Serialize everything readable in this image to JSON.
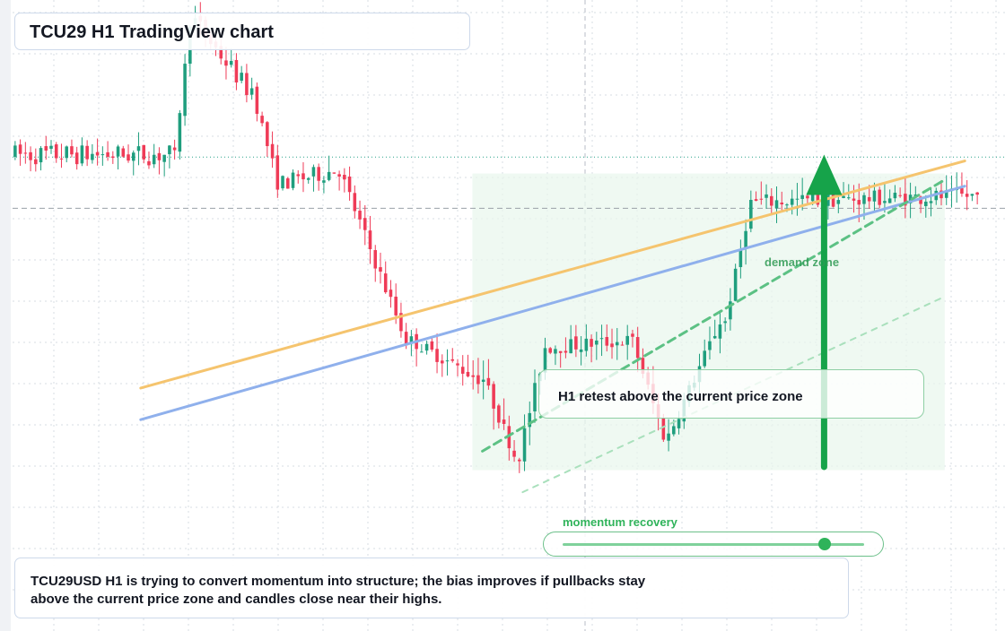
{
  "header": {
    "title": "TCU29 H1 TradingView chart"
  },
  "annotations": {
    "retest_note": "H1 retest above the current price zone",
    "zone_label": "demand zone",
    "momentum_label": "momentum recovery",
    "momentum_level": 0.87
  },
  "summary": {
    "text": "TCU29USD H1 is trying to convert momentum into structure; the bias improves if pullbacks stay above the current price zone and candles close near their highs."
  },
  "colors": {
    "bull": "#1f9e7e",
    "bear": "#ef3b57",
    "arrow": "#16a34a",
    "orange_line": "#f5c46e",
    "blue_line": "#8fb0ec",
    "dashed_green": "#5cc184",
    "grid": "#d7dce3",
    "zone_fill": "#eaf7ee"
  },
  "chart_data": {
    "type": "candlestick",
    "title": "TCU29 H1 TradingView chart",
    "symbol": "TCU29USD",
    "timeframe": "H1",
    "xlabel": "",
    "ylabel": "",
    "ylim": [
      0,
      100
    ],
    "grid": true,
    "tick_labels": [],
    "segments": [
      {
        "label": "range",
        "count": 31,
        "start": 75.5,
        "end": 75.5,
        "vol": 0.7,
        "wick": 2.5,
        "chop": 3.4
      },
      {
        "label": "spike",
        "count": 4,
        "start": 75.5,
        "end": 96.5,
        "vol": 1.0,
        "wick": 2.2,
        "chop": 1.5
      },
      {
        "label": "top",
        "count": 11,
        "start": 96.5,
        "end": 86.0,
        "vol": 1.0,
        "wick": 2.2,
        "chop": 3.2
      },
      {
        "label": "drop",
        "count": 6,
        "start": 86.0,
        "end": 71.0,
        "vol": 1.0,
        "wick": 2.2,
        "chop": 2.2
      },
      {
        "label": "shelf",
        "count": 11,
        "start": 71.0,
        "end": 73.0,
        "vol": 0.9,
        "wick": 2.6,
        "chop": 2.8
      },
      {
        "label": "fall",
        "count": 14,
        "start": 73.0,
        "end": 46.0,
        "vol": 1.0,
        "wick": 2.4,
        "chop": 2.4
      },
      {
        "label": "base",
        "count": 14,
        "start": 46.0,
        "end": 40.0,
        "vol": 0.9,
        "wick": 3.0,
        "chop": 2.2
      },
      {
        "label": "low",
        "count": 7,
        "start": 40.0,
        "end": 28.0,
        "vol": 1.1,
        "wick": 3.5,
        "chop": 2.2
      },
      {
        "label": "rebound",
        "count": 6,
        "start": 28.0,
        "end": 45.0,
        "vol": 1.0,
        "wick": 3.0,
        "chop": 2.4
      },
      {
        "label": "mid",
        "count": 16,
        "start": 45.0,
        "end": 46.0,
        "vol": 0.9,
        "wick": 2.8,
        "chop": 2.4
      },
      {
        "label": "dip",
        "count": 7,
        "start": 46.0,
        "end": 31.0,
        "vol": 1.0,
        "wick": 3.0,
        "chop": 2.0
      },
      {
        "label": "climb",
        "count": 11,
        "start": 31.0,
        "end": 49.0,
        "vol": 1.0,
        "wick": 2.6,
        "chop": 2.2
      },
      {
        "label": "surge",
        "count": 6,
        "start": 49.0,
        "end": 68.0,
        "vol": 1.1,
        "wick": 2.6,
        "chop": 1.8
      },
      {
        "label": "top2",
        "count": 44,
        "start": 68.0,
        "end": 69.0,
        "vol": 0.9,
        "wick": 2.8,
        "chop": 2.6
      }
    ],
    "reference_levels": [
      {
        "style": "dotted",
        "value": 75.1,
        "color": "#2aa28a"
      },
      {
        "style": "dashed",
        "value": 67.0,
        "color": "#9aa0a8"
      }
    ],
    "trendlines": [
      {
        "color": "#f5c46e",
        "from": [
          0.14,
          38.5
        ],
        "to": [
          0.96,
          74.5
        ],
        "dash": ""
      },
      {
        "color": "#8fb0ec",
        "from": [
          0.14,
          33.5
        ],
        "to": [
          0.96,
          70.5
        ],
        "dash": ""
      },
      {
        "color": "#5cc184",
        "from": [
          0.48,
          28.5
        ],
        "to": [
          0.94,
          71.5
        ],
        "dash": "9 6",
        "width": 3
      },
      {
        "color": "#a9e0bc",
        "from": [
          0.52,
          22.0
        ],
        "to": [
          0.94,
          53.0
        ],
        "dash": "6 7",
        "width": 2
      }
    ],
    "zone": {
      "from": 0.47,
      "to": 0.94,
      "low": 25.5,
      "high": 72.5
    },
    "arrow": {
      "x": 0.82,
      "from": 26.0,
      "to": 75.5
    }
  }
}
